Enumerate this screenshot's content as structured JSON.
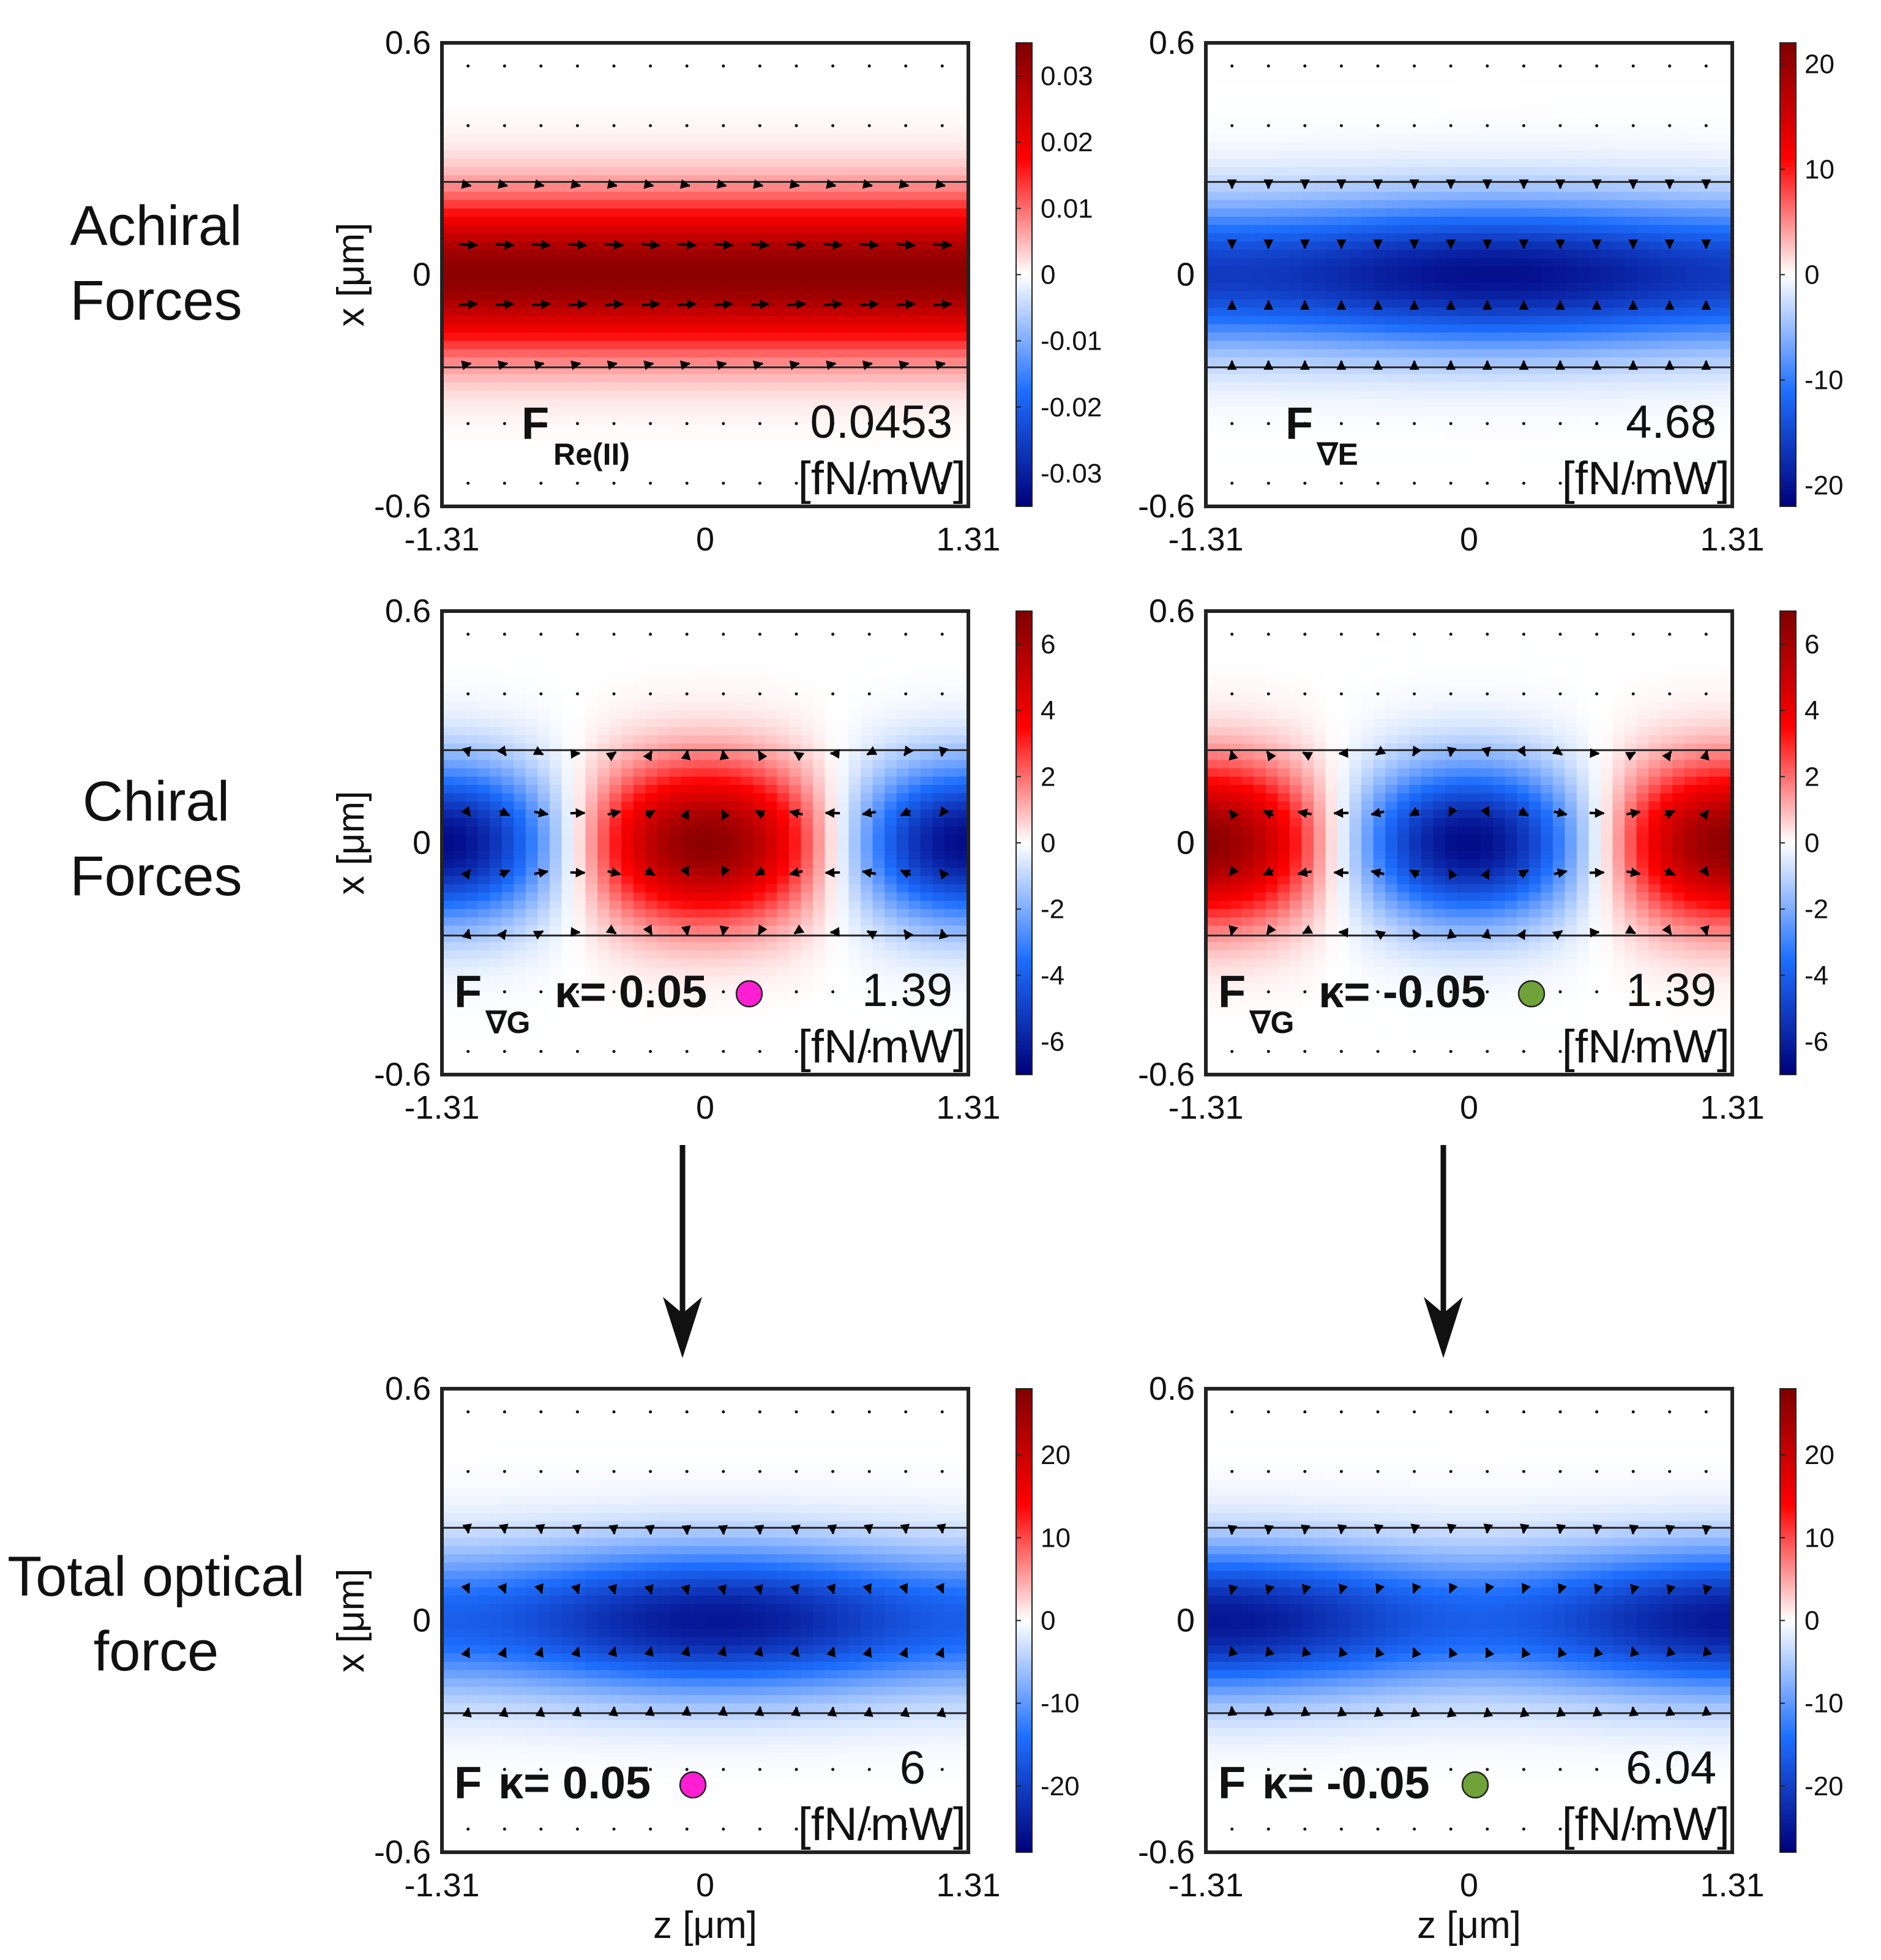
{
  "rows": [
    {
      "label_line1": "Achiral",
      "label_line2": "Forces"
    },
    {
      "label_line1": "Chiral",
      "label_line2": "Forces"
    },
    {
      "label_line1": "Total optical",
      "label_line2": "force"
    }
  ],
  "axes": {
    "x_ticks": [
      "-1.31",
      "0",
      "1.31"
    ],
    "y_ticks": [
      "0.6",
      "0",
      "-0.6"
    ],
    "ylabel": "x [μm]",
    "xlabel": "z [μm]"
  },
  "colors": {
    "pink_marker": "#ff1fd2",
    "green_marker": "#6fa33a"
  },
  "chart_data": [
    {
      "type": "heatmap",
      "row": 0,
      "col": 0,
      "pattern": "achiral_re",
      "force_label": "F",
      "force_subscript": "Re(II)",
      "kappa_text": "",
      "marker": "",
      "magnitude": "0.0453",
      "unit": "[fN/mW]",
      "xlim": [
        -1.31,
        1.31
      ],
      "ylim": [
        -0.6,
        0.6
      ],
      "colorbar": {
        "min": -0.035,
        "max": 0.035,
        "ticks": [
          "0.03",
          "0.02",
          "0.01",
          "0",
          "-0.01",
          "-0.02",
          "-0.03"
        ],
        "tick_values": [
          0.03,
          0.02,
          0.01,
          0,
          -0.01,
          -0.02,
          -0.03
        ]
      }
    },
    {
      "type": "heatmap",
      "row": 0,
      "col": 1,
      "pattern": "achiral_grad",
      "force_label": "F",
      "force_subscript": "∇E",
      "kappa_text": "",
      "marker": "",
      "magnitude": "4.68",
      "unit": "[fN/mW]",
      "xlim": [
        -1.31,
        1.31
      ],
      "ylim": [
        -0.6,
        0.6
      ],
      "colorbar": {
        "min": -22,
        "max": 22,
        "ticks": [
          "20",
          "10",
          "0",
          "-10",
          "-20"
        ],
        "tick_values": [
          20,
          10,
          0,
          -10,
          -20
        ]
      }
    },
    {
      "type": "heatmap",
      "row": 1,
      "col": 0,
      "pattern": "chiral_pos",
      "force_label": "F",
      "force_subscript": "∇G",
      "kappa_text": "κ= 0.05",
      "marker": "pink",
      "magnitude": "1.39",
      "unit": "[fN/mW]",
      "xlim": [
        -1.31,
        1.31
      ],
      "ylim": [
        -0.6,
        0.6
      ],
      "colorbar": {
        "min": -7,
        "max": 7,
        "ticks": [
          "6",
          "4",
          "2",
          "0",
          "-2",
          "-4",
          "-6"
        ],
        "tick_values": [
          6,
          4,
          2,
          0,
          -2,
          -4,
          -6
        ]
      }
    },
    {
      "type": "heatmap",
      "row": 1,
      "col": 1,
      "pattern": "chiral_neg",
      "force_label": "F",
      "force_subscript": "∇G",
      "kappa_text": "κ= -0.05",
      "marker": "green",
      "magnitude": "1.39",
      "unit": "[fN/mW]",
      "xlim": [
        -1.31,
        1.31
      ],
      "ylim": [
        -0.6,
        0.6
      ],
      "colorbar": {
        "min": -7,
        "max": 7,
        "ticks": [
          "6",
          "4",
          "2",
          "0",
          "-2",
          "-4",
          "-6"
        ],
        "tick_values": [
          6,
          4,
          2,
          0,
          -2,
          -4,
          -6
        ]
      }
    },
    {
      "type": "heatmap",
      "row": 2,
      "col": 0,
      "pattern": "total_pos",
      "force_label": "F",
      "force_subscript": "",
      "kappa_text": "κ= 0.05",
      "marker": "pink",
      "magnitude": "6",
      "unit": "[fN/mW]",
      "xlim": [
        -1.31,
        1.31
      ],
      "ylim": [
        -0.6,
        0.6
      ],
      "colorbar": {
        "min": -28,
        "max": 28,
        "ticks": [
          "20",
          "10",
          "0",
          "-10",
          "-20"
        ],
        "tick_values": [
          20,
          10,
          0,
          -10,
          -20
        ]
      }
    },
    {
      "type": "heatmap",
      "row": 2,
      "col": 1,
      "pattern": "total_neg",
      "force_label": "F",
      "force_subscript": "",
      "kappa_text": "κ= -0.05",
      "marker": "green",
      "magnitude": "6.04",
      "unit": "[fN/mW]",
      "xlim": [
        -1.31,
        1.31
      ],
      "ylim": [
        -0.6,
        0.6
      ],
      "colorbar": {
        "min": -28,
        "max": 28,
        "ticks": [
          "20",
          "10",
          "0",
          "-10",
          "-20"
        ],
        "tick_values": [
          20,
          10,
          0,
          -10,
          -20
        ]
      }
    }
  ]
}
